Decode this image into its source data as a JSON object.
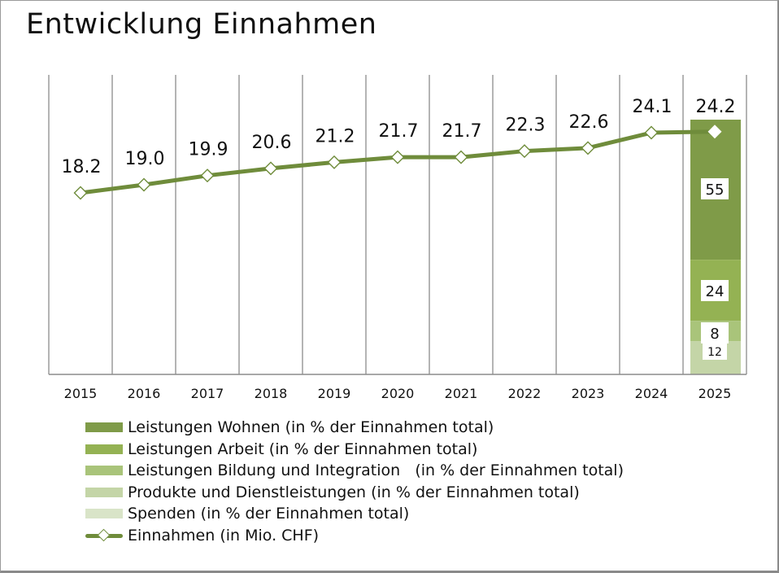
{
  "chart_data": {
    "type": "line+stacked-bar",
    "title": "Entwicklung Einnahmen",
    "categories": [
      "2015",
      "2016",
      "2017",
      "2018",
      "2019",
      "2020",
      "2021",
      "2022",
      "2023",
      "2024",
      "2025"
    ],
    "line_series": {
      "name": "Einnahmen (in Mio. CHF)",
      "values": [
        18.2,
        19.0,
        19.9,
        20.6,
        21.2,
        21.7,
        21.7,
        22.3,
        22.6,
        24.1,
        24.2
      ],
      "labels": [
        "18.2",
        "19.0",
        "19.9",
        "20.6",
        "21.2",
        "21.7",
        "21.7",
        "22.3",
        "22.6",
        "24.1",
        "24.2"
      ],
      "color": "#6f8c3b"
    },
    "bar_series": {
      "category": "2025",
      "segments": [
        {
          "name": "Leistungen Wohnen (in % der Einnahmen total)",
          "value": 55,
          "label": "55",
          "color": "#7f9b48"
        },
        {
          "name": "Leistungen Arbeit (in % der Einnahmen total)",
          "value": 24,
          "label": "24",
          "color": "#94b253"
        },
        {
          "name": "Leistungen Bildung und Integration   (in % der Einnahmen total)",
          "value": 8,
          "label": "8",
          "color": "#a9c47a"
        },
        {
          "name": "Produkte und Dienstleistungen (in % der Einnahmen total)",
          "value": 12,
          "label": "12",
          "color": "#c4d5a7"
        },
        {
          "name": "Spenden (in % der Einnahmen total)",
          "value": 1,
          "label": "",
          "color": "#d9e4c8"
        }
      ]
    },
    "xlabel": "",
    "ylabel": "",
    "grid": "vertical",
    "legend_position": "bottom"
  }
}
